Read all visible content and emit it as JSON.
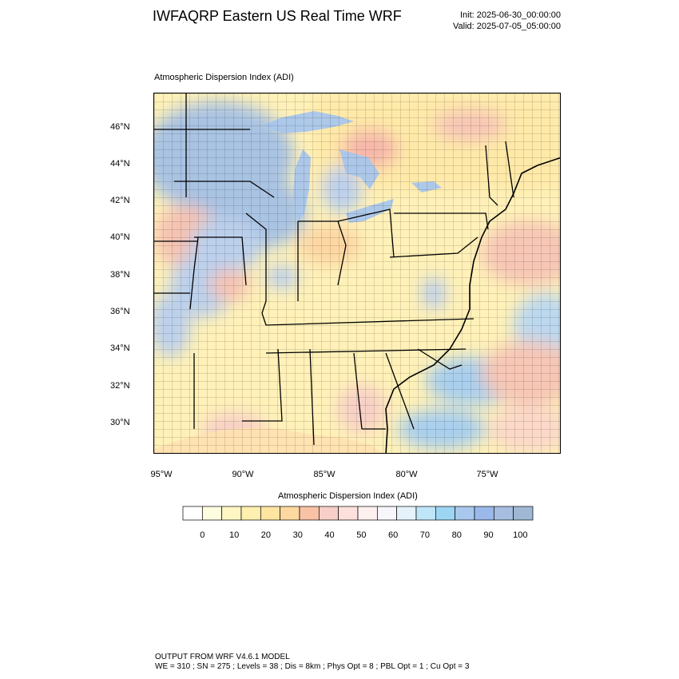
{
  "header": {
    "title": "IWFAQRP Eastern US Real Time WRF",
    "init": "Init: 2025-06-30_00:00:00",
    "valid": "Valid: 2025-07-05_05:00:00"
  },
  "map": {
    "subtitle": "Atmospheric Dispersion Index   (ADI)",
    "lat_labels": [
      "46°N",
      "44°N",
      "42°N",
      "40°N",
      "38°N",
      "36°N",
      "34°N",
      "32°N",
      "30°N"
    ],
    "lon_labels": [
      "95°W",
      "90°W",
      "85°W",
      "80°W",
      "75°W"
    ]
  },
  "legend": {
    "title": "Atmospheric Dispersion Index  (ADI)",
    "labels": [
      "0",
      "10",
      "20",
      "30",
      "40",
      "50",
      "60",
      "70",
      "80",
      "90",
      "100"
    ],
    "colors": [
      "#ffffff",
      "#fffde0",
      "#fff6c4",
      "#fff0b0",
      "#ffe5a0",
      "#fdd9a0",
      "#f9c2a6",
      "#f7cfc8",
      "#fbe0dc",
      "#fdf0ef",
      "#f6f6fb",
      "#e6f2fb",
      "#bfe6f8",
      "#9dd6f2",
      "#a9c8ee",
      "#9ab9ea",
      "#a7bee0",
      "#a0b8d4"
    ]
  },
  "footer": {
    "line1": "OUTPUT FROM WRF V4.6.1 MODEL",
    "line2": "WE = 310 ; SN = 275 ; Levels = 38 ; Dis = 8km ; Phys Opt = 8 ; PBL Opt = 1 ; Cu Opt = 3"
  }
}
